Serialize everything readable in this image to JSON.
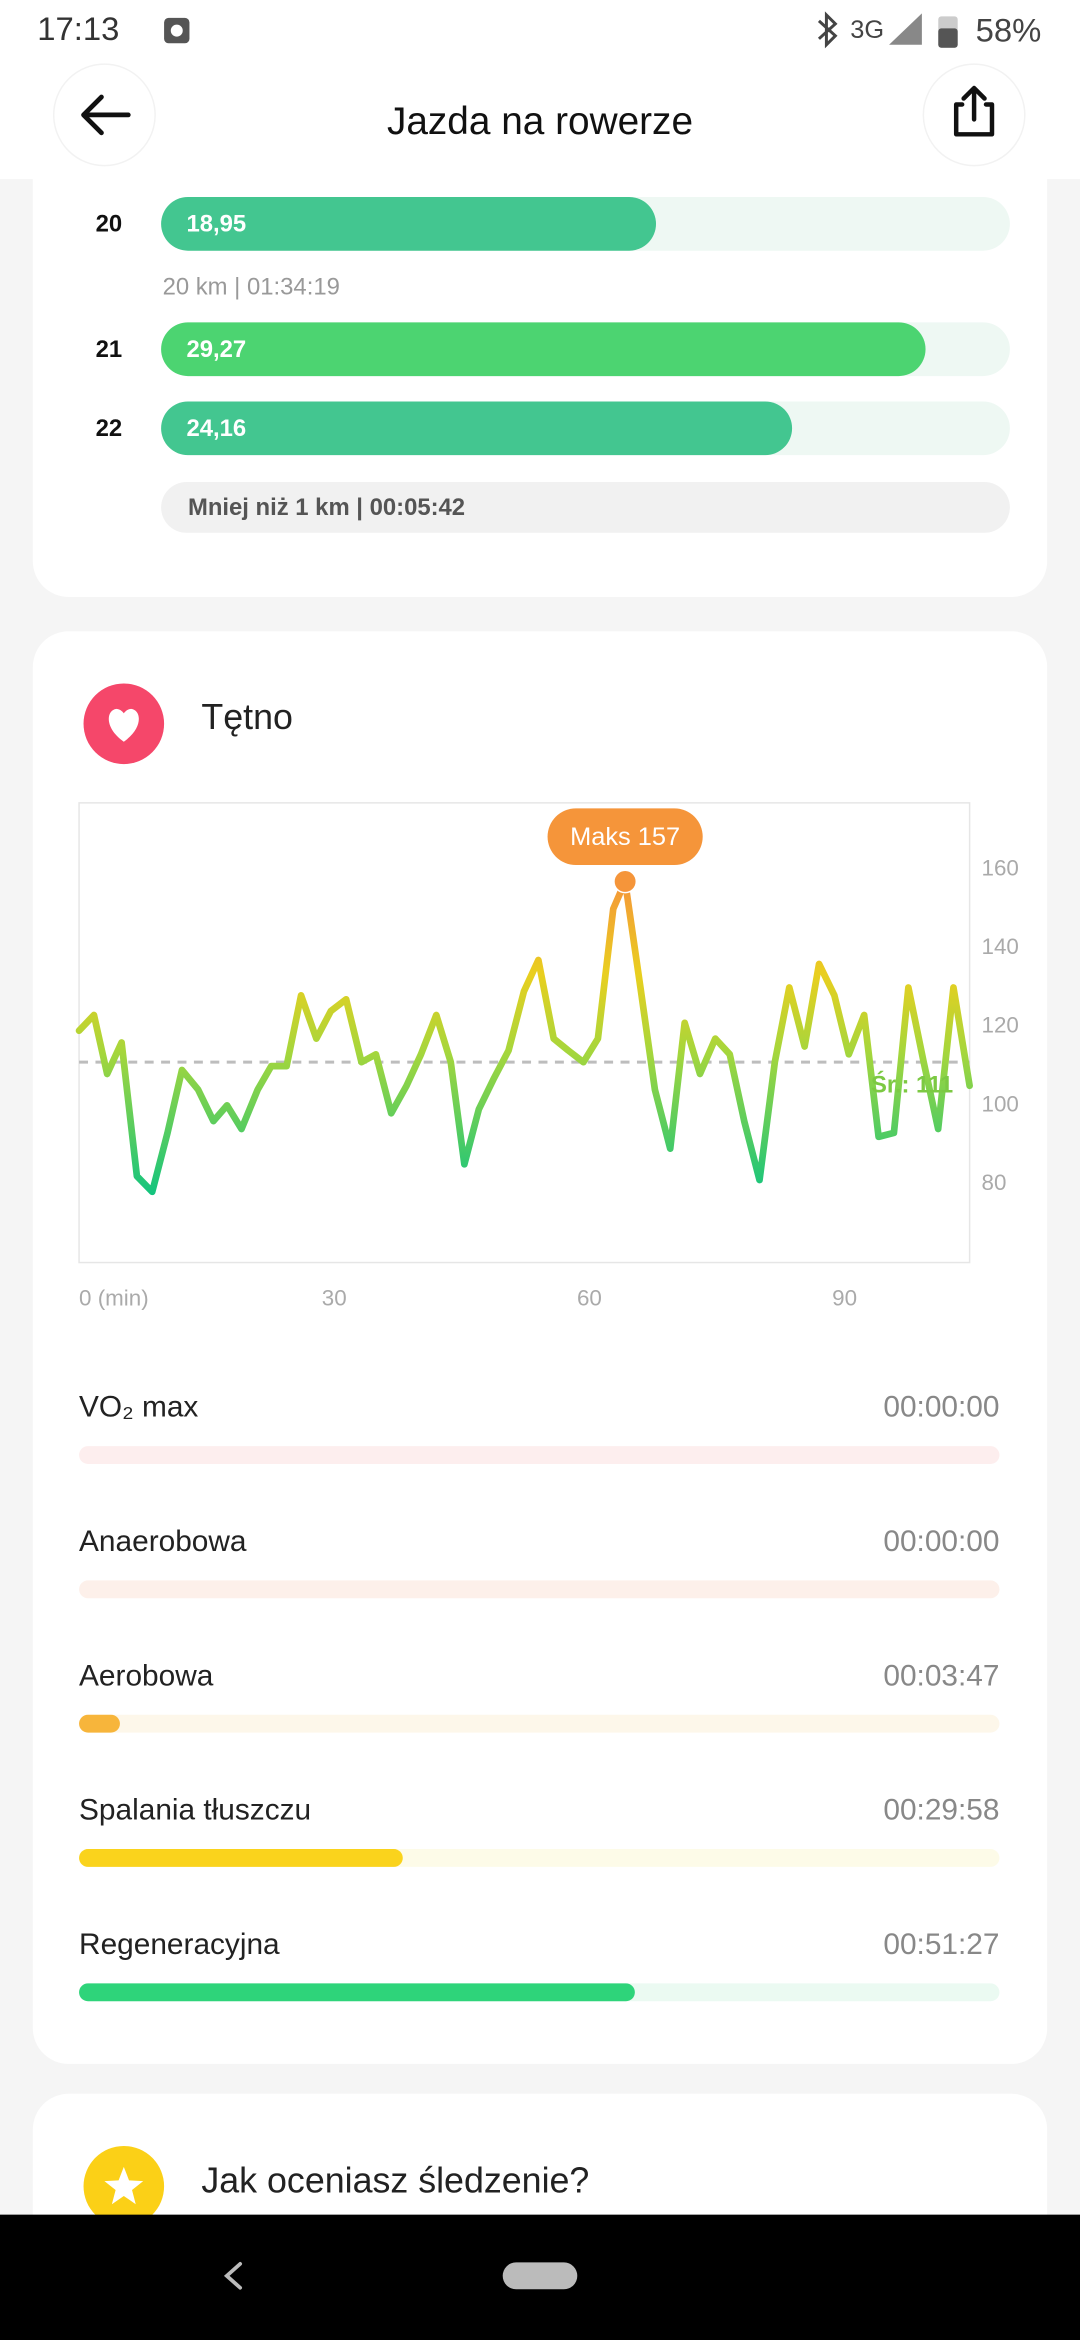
{
  "status_bar": {
    "time": "17:13",
    "network": "3G",
    "battery": "58%"
  },
  "header": {
    "title": "Jazda na rowerze"
  },
  "splits": {
    "categories": [
      "20",
      "21",
      "22"
    ],
    "values": [
      18.95,
      29.27,
      24.16
    ],
    "value_labels": [
      "18,95",
      "29,27",
      "24,16"
    ],
    "colors": [
      "#43c690",
      "#4cd471",
      "#43c690"
    ],
    "xlim": [
      0,
      32.5
    ],
    "note": "20 km | 01:34:19",
    "footer": "Mniej niż 1 km | 00:05:42"
  },
  "chart_data": {
    "type": "line",
    "title": "Tętno",
    "x": [
      0,
      1.75,
      3.3,
      5,
      6.8,
      8.6,
      10.4,
      12.1,
      14,
      15.8,
      17.4,
      19.1,
      21,
      22.6,
      24.4,
      26.1,
      27.9,
      29.6,
      31.4,
      33.2,
      34.9,
      36.7,
      38.5,
      40.2,
      42,
      43.7,
      45.3,
      47,
      48.8,
      50.5,
      52.3,
      54,
      55.8,
      57.5,
      59.3,
      61,
      62.8,
      64.2,
      66,
      67.7,
      69.5,
      71.2,
      73,
      74.8,
      76.5,
      78.2,
      80,
      81.8,
      83.5,
      85.3,
      87,
      88.8,
      90.5,
      92.3,
      94,
      95.8,
      97.5,
      99.3,
      101,
      102.8,
      104.7
    ],
    "series": [
      {
        "name": "Tętno",
        "values": [
          119,
          123,
          108,
          116,
          82,
          78,
          93,
          109,
          104,
          96,
          100,
          94,
          104,
          110,
          110,
          128,
          117,
          124,
          127,
          111,
          113,
          98,
          105,
          113,
          123,
          111,
          85,
          99,
          107,
          114,
          129,
          137,
          117,
          114,
          111,
          117,
          150,
          157,
          130,
          104,
          89,
          121,
          108,
          117,
          113,
          96,
          81,
          111,
          130,
          115,
          136,
          128,
          113,
          123,
          92,
          93,
          130,
          111,
          94,
          130,
          105
        ]
      }
    ],
    "xlim": [
      0,
      104.7
    ],
    "ylim": [
      60,
      177
    ],
    "xticks": [
      {
        "value": 0,
        "label": "0 (min)"
      },
      30,
      60,
      90
    ],
    "yticks": [
      80,
      100,
      120,
      140,
      160
    ],
    "max": {
      "x": 64.2,
      "value": 157,
      "label": "Maks 157",
      "color": "#f5953a"
    },
    "average": {
      "value": 111,
      "label": "Śr.: 111",
      "color": "#7cc943"
    }
  },
  "zones": [
    {
      "name": "VO₂ max",
      "time": "00:00:00",
      "color": "#f46b6b",
      "track": "#fdeeee"
    },
    {
      "name": "Anaerobowa",
      "time": "00:00:00",
      "color": "#f7885a",
      "track": "#fdf0ea"
    },
    {
      "name": "Aerobowa",
      "time": "00:03:47",
      "color": "#f7b53b",
      "track": "#fdf7ea"
    },
    {
      "name": "Spalania tłuszczu",
      "time": "00:29:58",
      "color": "#fad31c",
      "track": "#fdfbe8"
    },
    {
      "name": "Regeneracyjna",
      "time": "00:51:27",
      "color": "#2ed47a",
      "track": "#ebfaf2"
    }
  ],
  "rating": {
    "question": "Jak oceniasz śledzenie?"
  }
}
